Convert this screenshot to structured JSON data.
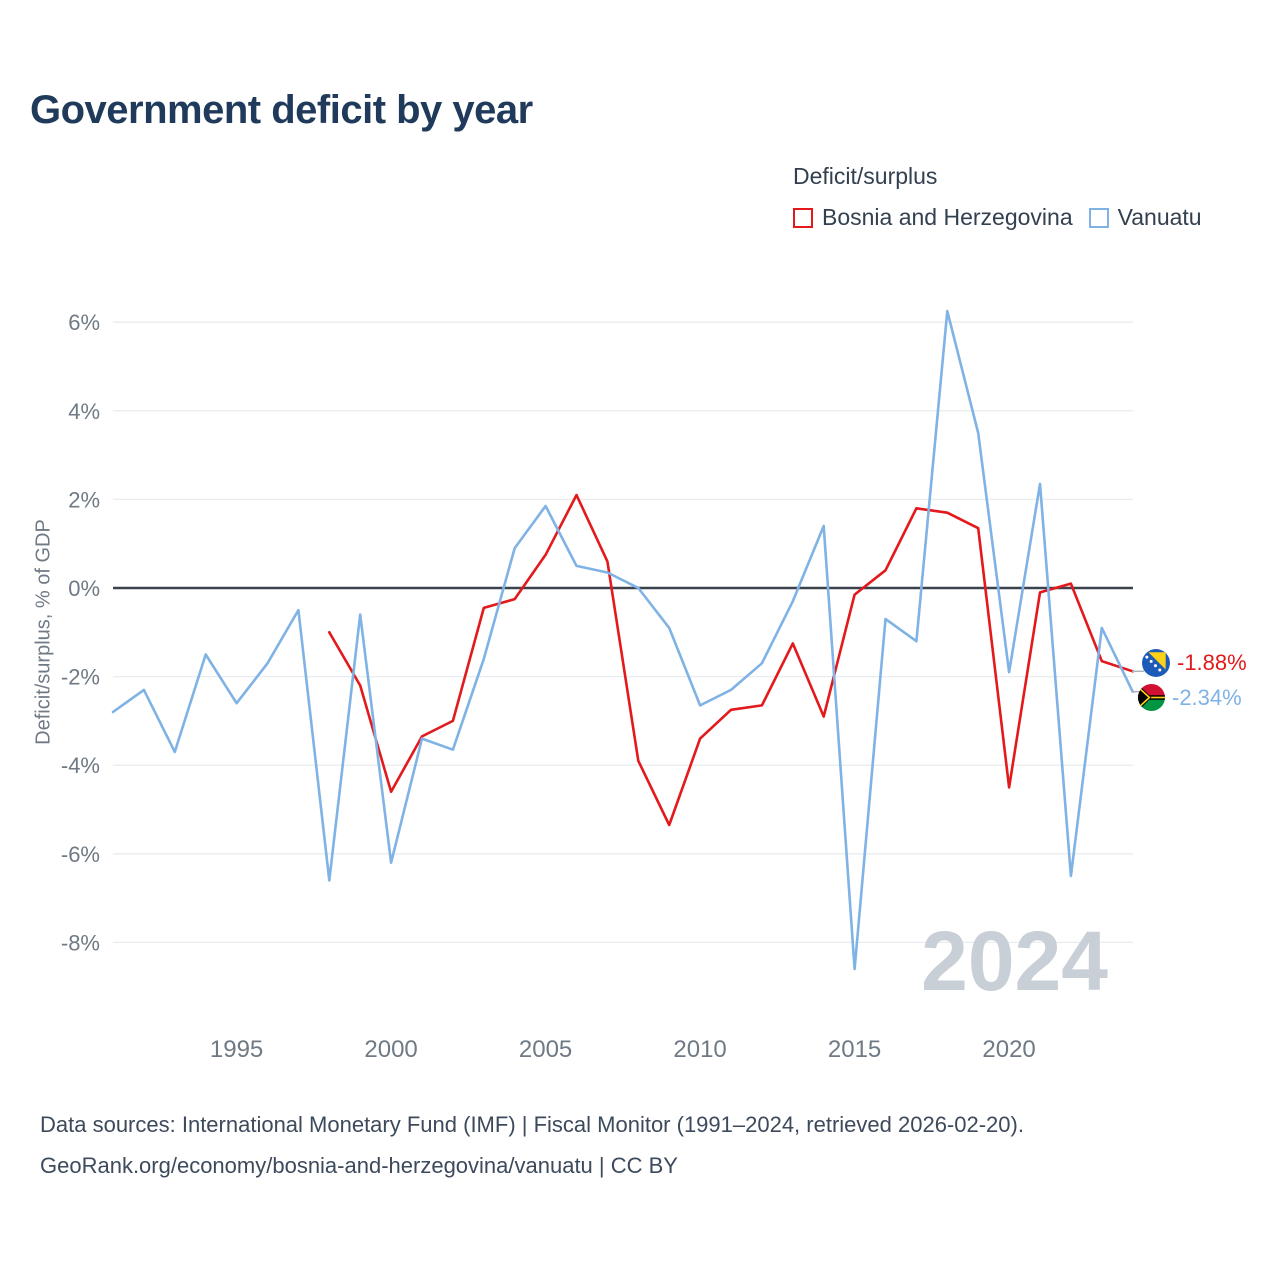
{
  "title": "Government deficit by year",
  "legend": {
    "title": "Deficit/surplus",
    "items": [
      {
        "label": "Bosnia and Herzegovina",
        "color": "#e3191c"
      },
      {
        "label": "Vanuatu",
        "color": "#7fb2e5"
      }
    ]
  },
  "y_axis_label": "Deficit/surplus, % of GDP",
  "watermark": "2024",
  "end_labels": [
    {
      "series": "Bosnia and Herzegovina",
      "text": "-1.88%",
      "color": "#e3191c",
      "flag": "bosnia-flag-icon"
    },
    {
      "series": "Vanuatu",
      "text": "-2.34%",
      "color": "#7fb2e5",
      "flag": "vanuatu-flag-icon"
    }
  ],
  "footer": {
    "line1": "Data sources: International Monetary Fund (IMF) | Fiscal Monitor (1991–2024, retrieved 2026-02-20).",
    "line2": "GeoRank.org/economy/bosnia-and-herzegovina/vanuatu | CC BY"
  },
  "chart_data": {
    "type": "line",
    "title": "Government deficit by year",
    "xlabel": "",
    "ylabel": "Deficit/surplus, % of GDP",
    "ylim": [
      -9,
      7
    ],
    "yticks": [
      6,
      4,
      2,
      0,
      -2,
      -4,
      -6,
      -8
    ],
    "xticks": [
      1995,
      2000,
      2005,
      2010,
      2015,
      2020
    ],
    "grid": true,
    "zero_line": true,
    "legend_position": "top-right",
    "x": [
      1991,
      1992,
      1993,
      1994,
      1995,
      1996,
      1997,
      1998,
      1999,
      2000,
      2001,
      2002,
      2003,
      2004,
      2005,
      2006,
      2007,
      2008,
      2009,
      2010,
      2011,
      2012,
      2013,
      2014,
      2015,
      2016,
      2017,
      2018,
      2019,
      2020,
      2021,
      2022,
      2023,
      2024
    ],
    "series": [
      {
        "name": "Bosnia and Herzegovina",
        "color": "#e3191c",
        "values": [
          null,
          null,
          null,
          null,
          null,
          null,
          null,
          -1.0,
          -2.2,
          -4.6,
          -3.35,
          -3.0,
          -0.45,
          -0.25,
          0.75,
          2.1,
          0.6,
          -3.9,
          -5.35,
          -3.4,
          -2.75,
          -2.65,
          -1.25,
          -2.9,
          -0.15,
          0.4,
          1.8,
          1.7,
          1.35,
          -4.5,
          -0.1,
          0.1,
          -1.65,
          -1.88
        ]
      },
      {
        "name": "Vanuatu",
        "color": "#7fb2e5",
        "values": [
          -2.8,
          -2.3,
          -3.7,
          -1.5,
          -2.6,
          -1.7,
          -0.5,
          -6.6,
          -0.6,
          -6.2,
          -3.4,
          -3.65,
          -1.6,
          0.9,
          1.85,
          0.5,
          0.35,
          0.0,
          -0.9,
          -2.65,
          -2.3,
          -1.7,
          -0.3,
          1.4,
          -8.6,
          -0.7,
          -1.2,
          6.25,
          3.5,
          -1.9,
          2.35,
          -6.5,
          -0.9,
          -2.34
        ]
      }
    ]
  }
}
